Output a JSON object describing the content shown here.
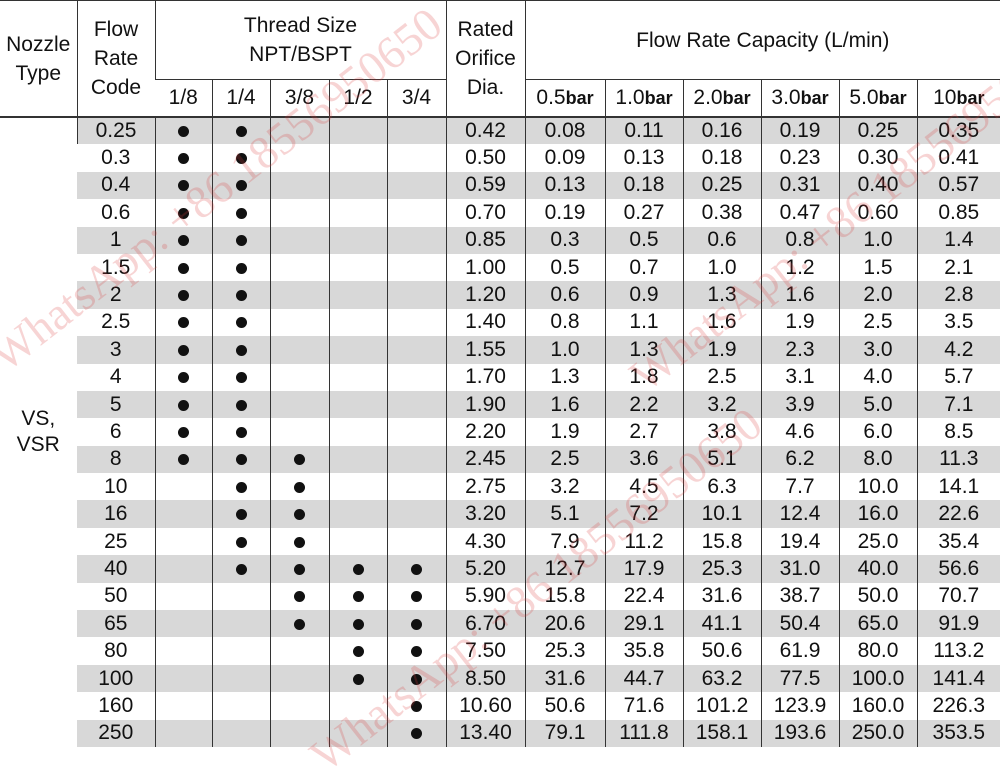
{
  "header": {
    "nozzle_type": "Nozzle Type",
    "flow_rate_code": "Flow Rate Code",
    "thread_size_line1": "Thread Size",
    "thread_size_line2": "NPT/BSPT",
    "rated_orifice": "Rated Orifice Dia.",
    "flow_capacity": "Flow Rate Capacity (L/min)",
    "thread_sizes": [
      "1/8",
      "1/4",
      "3/8",
      "1/2",
      "3/4"
    ],
    "pressures": [
      {
        "value": "0.5",
        "unit": "bar"
      },
      {
        "value": "1.0",
        "unit": "bar"
      },
      {
        "value": "2.0",
        "unit": "bar"
      },
      {
        "value": "3.0",
        "unit": "bar"
      },
      {
        "value": "5.0",
        "unit": "bar"
      },
      {
        "value": "10",
        "unit": "bar"
      }
    ]
  },
  "nozzle_type_value": "VS, VSR",
  "rows": [
    {
      "code": "0.25",
      "threads": [
        1,
        1,
        0,
        0,
        0
      ],
      "orifice": "0.42",
      "flows": [
        "0.08",
        "0.11",
        "0.16",
        "0.19",
        "0.25",
        "0.35"
      ]
    },
    {
      "code": "0.3",
      "threads": [
        1,
        1,
        0,
        0,
        0
      ],
      "orifice": "0.50",
      "flows": [
        "0.09",
        "0.13",
        "0.18",
        "0.23",
        "0.30",
        "0.41"
      ]
    },
    {
      "code": "0.4",
      "threads": [
        1,
        1,
        0,
        0,
        0
      ],
      "orifice": "0.59",
      "flows": [
        "0.13",
        "0.18",
        "0.25",
        "0.31",
        "0.40",
        "0.57"
      ]
    },
    {
      "code": "0.6",
      "threads": [
        1,
        1,
        0,
        0,
        0
      ],
      "orifice": "0.70",
      "flows": [
        "0.19",
        "0.27",
        "0.38",
        "0.47",
        "0.60",
        "0.85"
      ]
    },
    {
      "code": "1",
      "threads": [
        1,
        1,
        0,
        0,
        0
      ],
      "orifice": "0.85",
      "flows": [
        "0.3",
        "0.5",
        "0.6",
        "0.8",
        "1.0",
        "1.4"
      ]
    },
    {
      "code": "1.5",
      "threads": [
        1,
        1,
        0,
        0,
        0
      ],
      "orifice": "1.00",
      "flows": [
        "0.5",
        "0.7",
        "1.0",
        "1.2",
        "1.5",
        "2.1"
      ]
    },
    {
      "code": "2",
      "threads": [
        1,
        1,
        0,
        0,
        0
      ],
      "orifice": "1.20",
      "flows": [
        "0.6",
        "0.9",
        "1.3",
        "1.6",
        "2.0",
        "2.8"
      ]
    },
    {
      "code": "2.5",
      "threads": [
        1,
        1,
        0,
        0,
        0
      ],
      "orifice": "1.40",
      "flows": [
        "0.8",
        "1.1",
        "1.6",
        "1.9",
        "2.5",
        "3.5"
      ]
    },
    {
      "code": "3",
      "threads": [
        1,
        1,
        0,
        0,
        0
      ],
      "orifice": "1.55",
      "flows": [
        "1.0",
        "1.3",
        "1.9",
        "2.3",
        "3.0",
        "4.2"
      ]
    },
    {
      "code": "4",
      "threads": [
        1,
        1,
        0,
        0,
        0
      ],
      "orifice": "1.70",
      "flows": [
        "1.3",
        "1.8",
        "2.5",
        "3.1",
        "4.0",
        "5.7"
      ]
    },
    {
      "code": "5",
      "threads": [
        1,
        1,
        0,
        0,
        0
      ],
      "orifice": "1.90",
      "flows": [
        "1.6",
        "2.2",
        "3.2",
        "3.9",
        "5.0",
        "7.1"
      ]
    },
    {
      "code": "6",
      "threads": [
        1,
        1,
        0,
        0,
        0
      ],
      "orifice": "2.20",
      "flows": [
        "1.9",
        "2.7",
        "3.8",
        "4.6",
        "6.0",
        "8.5"
      ]
    },
    {
      "code": "8",
      "threads": [
        1,
        1,
        1,
        0,
        0
      ],
      "orifice": "2.45",
      "flows": [
        "2.5",
        "3.6",
        "5.1",
        "6.2",
        "8.0",
        "11.3"
      ]
    },
    {
      "code": "10",
      "threads": [
        0,
        1,
        1,
        0,
        0
      ],
      "orifice": "2.75",
      "flows": [
        "3.2",
        "4.5",
        "6.3",
        "7.7",
        "10.0",
        "14.1"
      ]
    },
    {
      "code": "16",
      "threads": [
        0,
        1,
        1,
        0,
        0
      ],
      "orifice": "3.20",
      "flows": [
        "5.1",
        "7.2",
        "10.1",
        "12.4",
        "16.0",
        "22.6"
      ]
    },
    {
      "code": "25",
      "threads": [
        0,
        1,
        1,
        0,
        0
      ],
      "orifice": "4.30",
      "flows": [
        "7.9",
        "11.2",
        "15.8",
        "19.4",
        "25.0",
        "35.4"
      ]
    },
    {
      "code": "40",
      "threads": [
        0,
        1,
        1,
        1,
        1
      ],
      "orifice": "5.20",
      "flows": [
        "12.7",
        "17.9",
        "25.3",
        "31.0",
        "40.0",
        "56.6"
      ]
    },
    {
      "code": "50",
      "threads": [
        0,
        0,
        1,
        1,
        1
      ],
      "orifice": "5.90",
      "flows": [
        "15.8",
        "22.4",
        "31.6",
        "38.7",
        "50.0",
        "70.7"
      ]
    },
    {
      "code": "65",
      "threads": [
        0,
        0,
        1,
        1,
        1
      ],
      "orifice": "6.70",
      "flows": [
        "20.6",
        "29.1",
        "41.1",
        "50.4",
        "65.0",
        "91.9"
      ]
    },
    {
      "code": "80",
      "threads": [
        0,
        0,
        0,
        1,
        1
      ],
      "orifice": "7.50",
      "flows": [
        "25.3",
        "35.8",
        "50.6",
        "61.9",
        "80.0",
        "113.2"
      ]
    },
    {
      "code": "100",
      "threads": [
        0,
        0,
        0,
        1,
        1
      ],
      "orifice": "8.50",
      "flows": [
        "31.6",
        "44.7",
        "63.2",
        "77.5",
        "100.0",
        "141.4"
      ]
    },
    {
      "code": "160",
      "threads": [
        0,
        0,
        0,
        0,
        1
      ],
      "orifice": "10.60",
      "flows": [
        "50.6",
        "71.6",
        "101.2",
        "123.9",
        "160.0",
        "226.3"
      ]
    },
    {
      "code": "250",
      "threads": [
        0,
        0,
        0,
        0,
        1
      ],
      "orifice": "13.40",
      "flows": [
        "79.1",
        "111.8",
        "158.1",
        "193.6",
        "250.0",
        "353.5"
      ]
    }
  ],
  "watermarks": [
    "WhatsApp: +86 18556950650",
    "WhatsApp: +86 18556950650",
    "WhatsApp: +86 18556950650"
  ],
  "colors": {
    "stripe": "#d8d8d8",
    "watermark": "#dc3c3c"
  }
}
